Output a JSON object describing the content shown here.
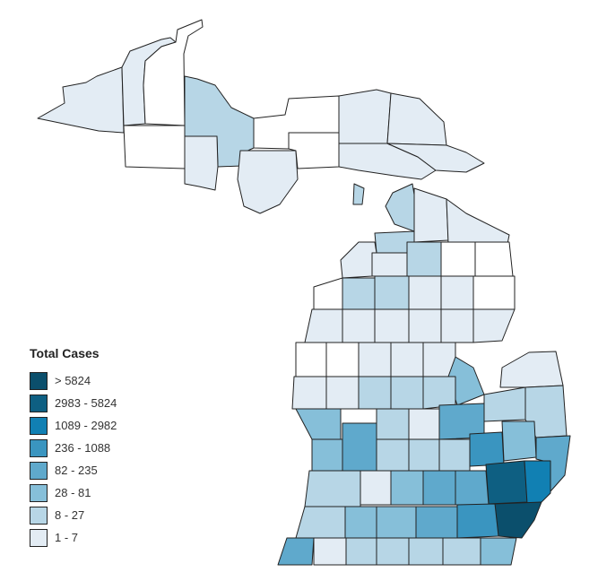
{
  "legend": {
    "title": "Total Cases",
    "items": [
      {
        "label": "> 5824",
        "color": "#0b4f6c"
      },
      {
        "label": "2983 - 5824",
        "color": "#0e5f82"
      },
      {
        "label": "1089 - 2982",
        "color": "#1180b3"
      },
      {
        "label": "236 - 1088",
        "color": "#3a95c0"
      },
      {
        "label": "82 - 235",
        "color": "#5fa9cc"
      },
      {
        "label": "28 - 81",
        "color": "#86bfd9"
      },
      {
        "label": "8 - 27",
        "color": "#b7d6e6"
      },
      {
        "label": "1 - 7",
        "color": "#e3ecf4"
      }
    ],
    "no_data_color": "#ffffff"
  },
  "map": {
    "region": "Michigan",
    "unit": "county",
    "metric": "Total Cases"
  }
}
